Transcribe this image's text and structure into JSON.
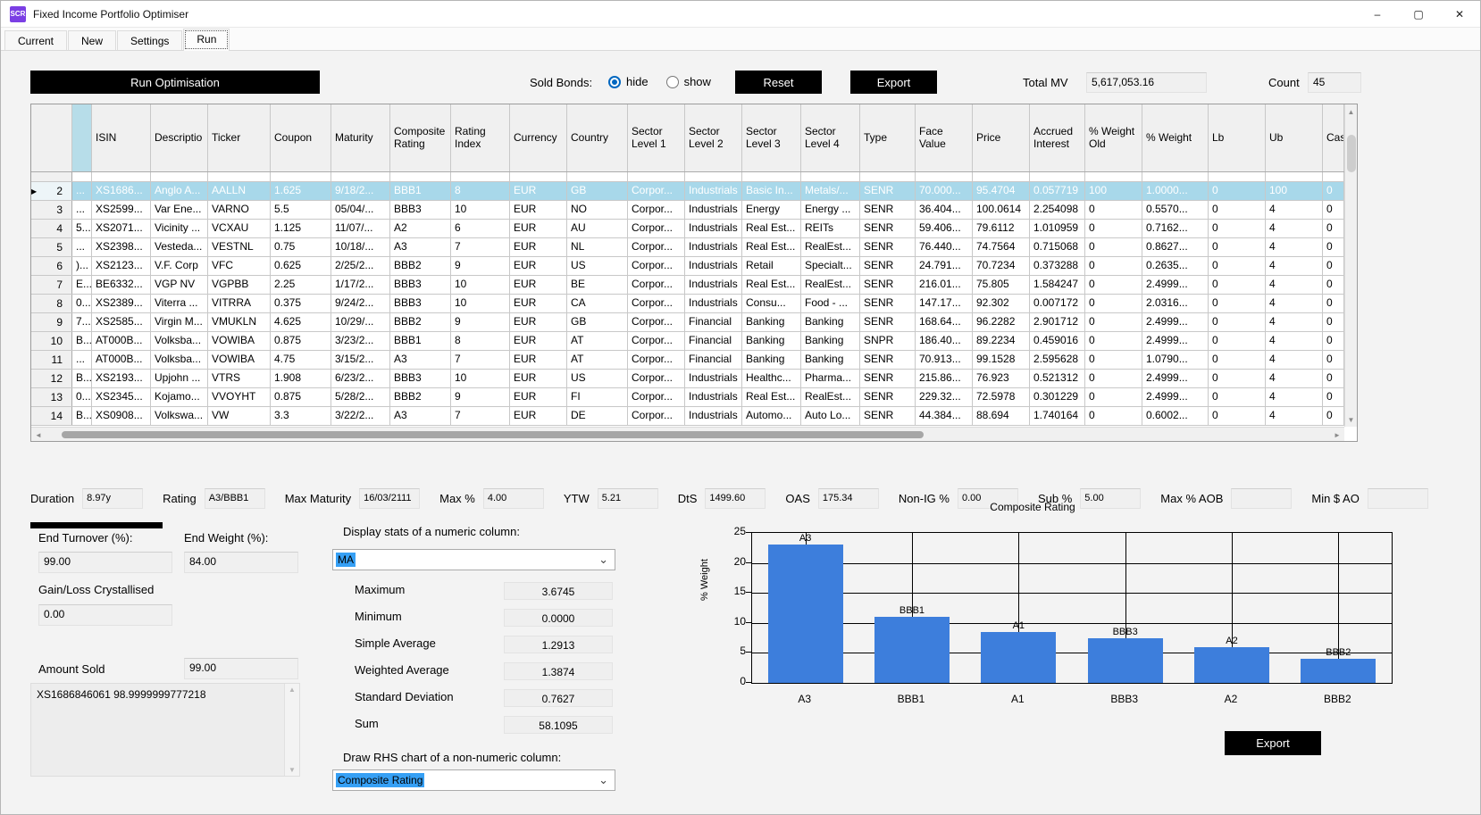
{
  "window": {
    "title": "Fixed Income Portfolio Optimiser",
    "icon_text": "SCR",
    "minimize": "–",
    "maximize": "▢",
    "close": "✕"
  },
  "tabs": [
    {
      "label": "Current"
    },
    {
      "label": "New"
    },
    {
      "label": "Settings"
    },
    {
      "label": "Run"
    }
  ],
  "toolbar": {
    "run_button": "Run Optimisation",
    "sold_bonds_label": "Sold Bonds:",
    "radio_hide": "hide",
    "radio_show": "show",
    "reset_button": "Reset",
    "export_button": "Export",
    "total_mv_label": "Total MV",
    "total_mv_value": "5,617,053.16",
    "count_label": "Count",
    "count_value": "45"
  },
  "grid": {
    "columns": [
      "",
      "",
      "ISIN",
      "Descriptio",
      "Ticker",
      "Coupon",
      "Maturity",
      "Composite Rating",
      "Rating Index",
      "Currency",
      "Country",
      "Sector Level 1",
      "Sector Level 2",
      "Sector Level 3",
      "Sector Level 4",
      "Type",
      "Face Value",
      "Price",
      "Accrued Interest",
      "% Weight Old",
      "% Weight",
      "Lb",
      "Ub",
      "Cas"
    ],
    "selected_row_index": 0,
    "rows": [
      [
        "2",
        "...",
        "XS1686...",
        "Anglo A...",
        "AALLN",
        "1.625",
        "9/18/2...",
        "BBB1",
        "8",
        "EUR",
        "GB",
        "Corpor...",
        "Industrials",
        "Basic In...",
        "Metals/...",
        "SENR",
        "70.000...",
        "95.4704",
        "0.057719",
        "100",
        "1.0000...",
        "0",
        "100",
        "0"
      ],
      [
        "3",
        "...",
        "XS2599...",
        "Var Ene...",
        "VARNO",
        "5.5",
        "05/04/...",
        "BBB3",
        "10",
        "EUR",
        "NO",
        "Corpor...",
        "Industrials",
        "Energy",
        "Energy ...",
        "SENR",
        "36.404...",
        "100.0614",
        "2.254098",
        "0",
        "0.5570...",
        "0",
        "4",
        "0"
      ],
      [
        "4",
        "5...",
        "XS2071...",
        "Vicinity ...",
        "VCXAU",
        "1.125",
        "11/07/...",
        "A2",
        "6",
        "EUR",
        "AU",
        "Corpor...",
        "Industrials",
        "Real Est...",
        "REITs",
        "SENR",
        "59.406...",
        "79.6112",
        "1.010959",
        "0",
        "0.7162...",
        "0",
        "4",
        "0"
      ],
      [
        "5",
        "...",
        "XS2398...",
        "Vesteda...",
        "VESTNL",
        "0.75",
        "10/18/...",
        "A3",
        "7",
        "EUR",
        "NL",
        "Corpor...",
        "Industrials",
        "Real Est...",
        "RealEst...",
        "SENR",
        "76.440...",
        "74.7564",
        "0.715068",
        "0",
        "0.8627...",
        "0",
        "4",
        "0"
      ],
      [
        "6",
        ")...",
        "XS2123...",
        "V.F. Corp",
        "VFC",
        "0.625",
        "2/25/2...",
        "BBB2",
        "9",
        "EUR",
        "US",
        "Corpor...",
        "Industrials",
        "Retail",
        "Specialt...",
        "SENR",
        "24.791...",
        "70.7234",
        "0.373288",
        "0",
        "0.2635...",
        "0",
        "4",
        "0"
      ],
      [
        "7",
        "E...",
        "BE6332...",
        "VGP NV",
        "VGPBB",
        "2.25",
        "1/17/2...",
        "BBB3",
        "10",
        "EUR",
        "BE",
        "Corpor...",
        "Industrials",
        "Real Est...",
        "RealEst...",
        "SENR",
        "216.01...",
        "75.805",
        "1.584247",
        "0",
        "2.4999...",
        "0",
        "4",
        "0"
      ],
      [
        "8",
        "0...",
        "XS2389...",
        "Viterra ...",
        "VITRRA",
        "0.375",
        "9/24/2...",
        "BBB3",
        "10",
        "EUR",
        "CA",
        "Corpor...",
        "Industrials",
        "Consu...",
        "Food - ...",
        "SENR",
        "147.17...",
        "92.302",
        "0.007172",
        "0",
        "2.0316...",
        "0",
        "4",
        "0"
      ],
      [
        "9",
        "7...",
        "XS2585...",
        "Virgin M...",
        "VMUKLN",
        "4.625",
        "10/29/...",
        "BBB2",
        "9",
        "EUR",
        "GB",
        "Corpor...",
        "Financial",
        "Banking",
        "Banking",
        "SENR",
        "168.64...",
        "96.2282",
        "2.901712",
        "0",
        "2.4999...",
        "0",
        "4",
        "0"
      ],
      [
        "10",
        "B...",
        "AT000B...",
        "Volksba...",
        "VOWIBA",
        "0.875",
        "3/23/2...",
        "BBB1",
        "8",
        "EUR",
        "AT",
        "Corpor...",
        "Financial",
        "Banking",
        "Banking",
        "SNPR",
        "186.40...",
        "89.2234",
        "0.459016",
        "0",
        "2.4999...",
        "0",
        "4",
        "0"
      ],
      [
        "11",
        "...",
        "AT000B...",
        "Volksba...",
        "VOWIBA",
        "4.75",
        "3/15/2...",
        "A3",
        "7",
        "EUR",
        "AT",
        "Corpor...",
        "Financial",
        "Banking",
        "Banking",
        "SENR",
        "70.913...",
        "99.1528",
        "2.595628",
        "0",
        "1.0790...",
        "0",
        "4",
        "0"
      ],
      [
        "12",
        "B...",
        "XS2193...",
        "Upjohn ...",
        "VTRS",
        "1.908",
        "6/23/2...",
        "BBB3",
        "10",
        "EUR",
        "US",
        "Corpor...",
        "Industrials",
        "Healthc...",
        "Pharma...",
        "SENR",
        "215.86...",
        "76.923",
        "0.521312",
        "0",
        "2.4999...",
        "0",
        "4",
        "0"
      ],
      [
        "13",
        "0...",
        "XS2345...",
        "Kojamo...",
        "VVOYHT",
        "0.875",
        "5/28/2...",
        "BBB2",
        "9",
        "EUR",
        "FI",
        "Corpor...",
        "Industrials",
        "Real Est...",
        "RealEst...",
        "SENR",
        "229.32...",
        "72.5978",
        "0.301229",
        "0",
        "2.4999...",
        "0",
        "4",
        "0"
      ],
      [
        "14",
        "B...",
        "XS0908...",
        "Volkswa...",
        "VW",
        "3.3",
        "3/22/2...",
        "A3",
        "7",
        "EUR",
        "DE",
        "Corpor...",
        "Industrials",
        "Automo...",
        "Auto Lo...",
        "SENR",
        "44.384...",
        "88.694",
        "1.740164",
        "0",
        "0.6002...",
        "0",
        "4",
        "0"
      ]
    ]
  },
  "portfolio_stats": [
    {
      "label": "Duration",
      "value": "8.97y"
    },
    {
      "label": "Rating",
      "value": "A3/BBB1"
    },
    {
      "label": "Max Maturity",
      "value": "16/03/2111"
    },
    {
      "label": "Max %",
      "value": "4.00"
    },
    {
      "label": "YTW",
      "value": "5.21"
    },
    {
      "label": "DtS",
      "value": "1499.60"
    },
    {
      "label": "OAS",
      "value": "175.34"
    },
    {
      "label": "Non-IG %",
      "value": "0.00"
    },
    {
      "label": "Sub %",
      "value": "5.00"
    },
    {
      "label": "Max % AOB",
      "value": ""
    },
    {
      "label": "Min $ AO",
      "value": ""
    }
  ],
  "results": {
    "end_turnover_label": "End Turnover (%):",
    "end_turnover_value": "99.00",
    "end_weight_label": "End Weight (%):",
    "end_weight_value": "84.00",
    "gain_loss_label": "Gain/Loss Crystallised",
    "gain_loss_value": "0.00",
    "amount_sold_label": "Amount Sold",
    "amount_sold_value": "99.00",
    "sold_detail": "XS1686846061 98.9999999777218"
  },
  "column_stats": {
    "title": "Display stats of a numeric column:",
    "selected_column": "MA",
    "rows": [
      {
        "label": "Maximum",
        "value": "3.6745"
      },
      {
        "label": "Minimum",
        "value": "0.0000"
      },
      {
        "label": "Simple Average",
        "value": "1.2913"
      },
      {
        "label": "Weighted Average",
        "value": "1.3874"
      },
      {
        "label": "Standard Deviation",
        "value": "0.7627"
      },
      {
        "label": "Sum",
        "value": "58.1095"
      }
    ],
    "rhs_title": "Draw RHS chart of a non-numeric column:",
    "rhs_selected": "Composite Rating"
  },
  "chart_export_label": "Export",
  "chart_data": {
    "type": "bar",
    "title": "Composite Rating",
    "categories": [
      "A3",
      "BBB1",
      "A1",
      "BBB3",
      "A2",
      "BBB2"
    ],
    "values": [
      23,
      11,
      8.5,
      7.5,
      6,
      4
    ],
    "bar_labels": [
      "A3",
      "BBB1",
      "A1",
      "BBB3",
      "A2",
      "BBB2"
    ],
    "xlabel": "",
    "ylabel": "% Weight",
    "ylim": [
      0,
      25
    ],
    "yticks": [
      0,
      5,
      10,
      15,
      20,
      25
    ],
    "bar_color": "#3D7EDC",
    "grid": true,
    "legend": "none"
  }
}
